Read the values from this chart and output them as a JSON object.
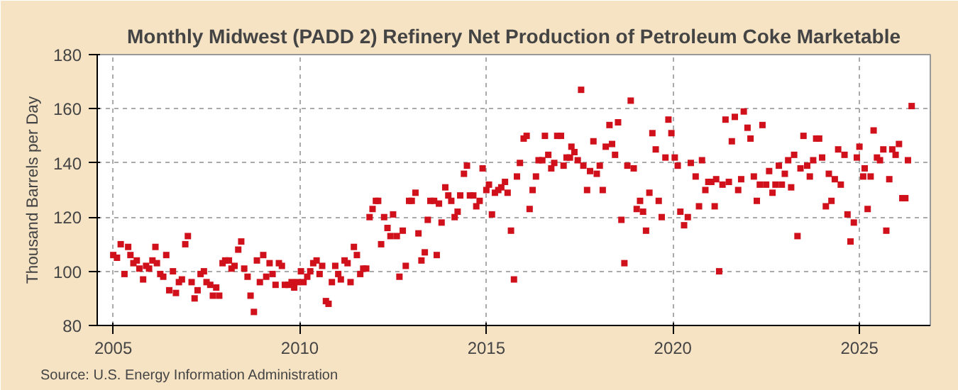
{
  "chart_data": {
    "type": "scatter",
    "title": "Monthly Midwest (PADD 2) Refinery Net Production of Petroleum Coke Marketable",
    "ylabel": "Thousand Barrels per Day",
    "annotations": [
      "Source: U.S. Energy Information Administration"
    ],
    "xlim": [
      2004.57,
      2026.9
    ],
    "xticks": [
      2005,
      2010,
      2015,
      2020,
      2025
    ],
    "ylim": [
      80,
      180
    ],
    "yticks": [
      80,
      100,
      120,
      140,
      160,
      180
    ],
    "grid": true,
    "marker": "square",
    "series": [
      {
        "color": "#d0101a",
        "x": [
          2005.0,
          2005.1,
          2005.2,
          2005.3,
          2005.4,
          2005.46,
          2005.54,
          2005.63,
          2005.7,
          2005.8,
          2005.88,
          2005.96,
          2006.05,
          2006.13,
          2006.17,
          2006.26,
          2006.34,
          2006.42,
          2006.5,
          2006.6,
          2006.68,
          2006.76,
          2006.84,
          2006.93,
          2007.0,
          2007.1,
          2007.18,
          2007.26,
          2007.34,
          2007.43,
          2007.5,
          2007.6,
          2007.67,
          2007.76,
          2007.84,
          2007.93,
          2008.0,
          2008.1,
          2008.17,
          2008.25,
          2008.35,
          2008.43,
          2008.51,
          2008.6,
          2008.68,
          2008.77,
          2008.85,
          2008.93,
          2009.02,
          2009.1,
          2009.19,
          2009.27,
          2009.35,
          2009.44,
          2009.52,
          2009.6,
          2009.7,
          2009.78,
          2009.85,
          2009.94,
          2010.03,
          2010.1,
          2010.2,
          2010.28,
          2010.36,
          2010.45,
          2010.53,
          2010.6,
          2010.7,
          2010.77,
          2010.86,
          2010.95,
          2011.03,
          2011.1,
          2011.2,
          2011.28,
          2011.36,
          2011.45,
          2011.53,
          2011.62,
          2011.7,
          2011.78,
          2011.87,
          2011.95,
          2012.04,
          2012.1,
          2012.18,
          2012.26,
          2012.35,
          2012.43,
          2012.5,
          2012.6,
          2012.67,
          2012.76,
          2012.84,
          2012.93,
          2013.0,
          2013.1,
          2013.18,
          2013.26,
          2013.35,
          2013.43,
          2013.5,
          2013.6,
          2013.67,
          2013.73,
          2013.8,
          2013.9,
          2013.98,
          2014.06,
          2014.15,
          2014.23,
          2014.3,
          2014.4,
          2014.48,
          2014.56,
          2014.65,
          2014.73,
          2014.82,
          2014.9,
          2015.0,
          2015.07,
          2015.15,
          2015.23,
          2015.32,
          2015.4,
          2015.5,
          2015.57,
          2015.66,
          2015.74,
          2015.82,
          2015.9,
          2016.0,
          2016.08,
          2016.16,
          2016.24,
          2016.33,
          2016.4,
          2016.5,
          2016.57,
          2016.66,
          2016.74,
          2016.82,
          2016.9,
          2017.0,
          2017.07,
          2017.15,
          2017.24,
          2017.28,
          2017.36,
          2017.45,
          2017.54,
          2017.6,
          2017.7,
          2017.78,
          2017.87,
          2017.96,
          2018.04,
          2018.12,
          2018.2,
          2018.3,
          2018.37,
          2018.45,
          2018.53,
          2018.62,
          2018.7,
          2018.78,
          2018.87,
          2018.95,
          2019.03,
          2019.12,
          2019.2,
          2019.28,
          2019.37,
          2019.45,
          2019.54,
          2019.62,
          2019.7,
          2019.8,
          2019.88,
          2019.96,
          2020.05,
          2020.13,
          2020.2,
          2020.3,
          2020.4,
          2020.48,
          2020.61,
          2020.7,
          2020.78,
          2020.87,
          2020.95,
          2021.03,
          2021.12,
          2021.16,
          2021.24,
          2021.33,
          2021.41,
          2021.5,
          2021.58,
          2021.66,
          2021.75,
          2021.83,
          2021.9,
          2022.0,
          2022.08,
          2022.17,
          2022.25,
          2022.33,
          2022.4,
          2022.5,
          2022.58,
          2022.67,
          2022.75,
          2022.84,
          2022.92,
          2023.0,
          2023.09,
          2023.17,
          2023.25,
          2023.34,
          2023.42,
          2023.5,
          2023.6,
          2023.67,
          2023.76,
          2023.84,
          2023.92,
          2024.0,
          2024.1,
          2024.18,
          2024.25,
          2024.34,
          2024.43,
          2024.5,
          2024.6,
          2024.68,
          2024.76,
          2024.85,
          2024.93,
          2025.0,
          2025.1,
          2025.14,
          2025.22,
          2025.3,
          2025.38,
          2025.47,
          2025.55,
          2025.64,
          2025.72,
          2025.8,
          2025.88,
          2025.97,
          2026.06,
          2026.15,
          2026.23,
          2026.3,
          2026.4
        ],
        "values": [
          106,
          105,
          110,
          99,
          109,
          106,
          103,
          104,
          101,
          97,
          102,
          101,
          104,
          109,
          103,
          99,
          98,
          106,
          93,
          100,
          92,
          96,
          97,
          110,
          113,
          96,
          90,
          93,
          99,
          100,
          96,
          95,
          91,
          94,
          91,
          103,
          104,
          104,
          101,
          102,
          108,
          111,
          101,
          98,
          91,
          85,
          104,
          96,
          106,
          98,
          103,
          99,
          95,
          103,
          102,
          95,
          95,
          96,
          94,
          96,
          100,
          96,
          98,
          100,
          103,
          104,
          99,
          102,
          89,
          88,
          96,
          102,
          99,
          97,
          104,
          103,
          96,
          109,
          106,
          99,
          101,
          101,
          120,
          123,
          126,
          126,
          110,
          120,
          116,
          113,
          121,
          113,
          98,
          115,
          102,
          126,
          126,
          129,
          114,
          104,
          107,
          119,
          126,
          126,
          106,
          125,
          118,
          131,
          128,
          126,
          120,
          122,
          128,
          136,
          139,
          128,
          128,
          124,
          126,
          138,
          130,
          132,
          121,
          129,
          130,
          131,
          133,
          129,
          115,
          97,
          135,
          140,
          149,
          150,
          123,
          130,
          135,
          141,
          141,
          150,
          143,
          138,
          140,
          150,
          150,
          139,
          142,
          142,
          146,
          144,
          141,
          167,
          139,
          130,
          137,
          148,
          136,
          139,
          130,
          146,
          154,
          147,
          143,
          155,
          119,
          103,
          139,
          163,
          138,
          123,
          126,
          122,
          115,
          129,
          151,
          145,
          126,
          120,
          142,
          156,
          151,
          142,
          139,
          122,
          117,
          120,
          140,
          135,
          124,
          141,
          130,
          133,
          133,
          124,
          134,
          100,
          132,
          156,
          133,
          148,
          157,
          130,
          134,
          159,
          153,
          149,
          135,
          126,
          132,
          154,
          132,
          137,
          129,
          132,
          139,
          132,
          136,
          141,
          131,
          143,
          113,
          138,
          150,
          139,
          135,
          141,
          149,
          149,
          142,
          124,
          136,
          126,
          134,
          145,
          132,
          143,
          121,
          111,
          118,
          142,
          146,
          135,
          138,
          123,
          135,
          152,
          142,
          141,
          145,
          115,
          134,
          145,
          143,
          147,
          127,
          127,
          141,
          161
        ]
      }
    ]
  }
}
